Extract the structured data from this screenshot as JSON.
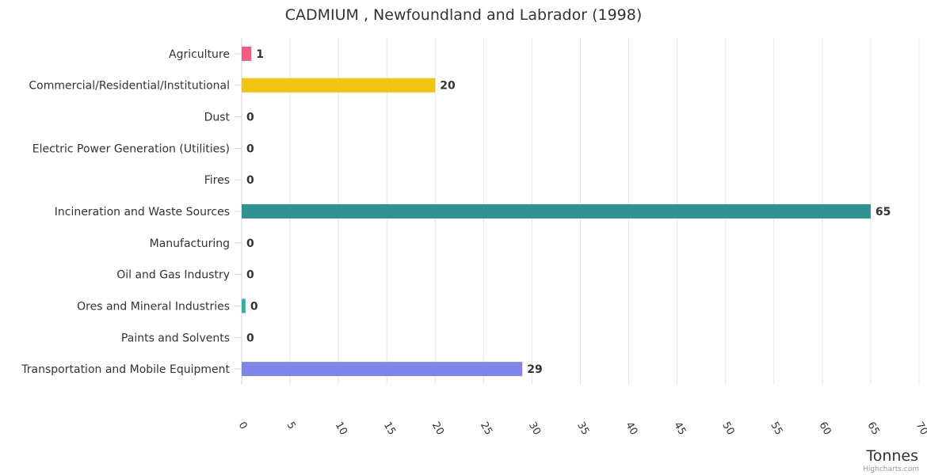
{
  "chart_data": {
    "type": "bar",
    "orientation": "horizontal",
    "title": "CADMIUM , Newfoundland and Labrador (1998)",
    "xlabel": "Tonnes",
    "categories": [
      "Agriculture",
      "Commercial/Residential/Institutional",
      "Dust",
      "Electric Power Generation (Utilities)",
      "Fires",
      "Incineration and Waste Sources",
      "Manufacturing",
      "Oil and Gas Industry",
      "Ores and Mineral Industries",
      "Paints and Solvents",
      "Transportation and Mobile Equipment"
    ],
    "values": [
      1,
      20,
      0,
      0,
      0,
      65,
      0,
      0,
      0.4,
      0,
      29
    ],
    "data_labels": [
      "1",
      "20",
      "0",
      "0",
      "0",
      "65",
      "0",
      "0",
      "0",
      "0",
      "29"
    ],
    "colors": [
      "#f15c80",
      "#f1c40f",
      "#2b908f",
      "#f45b5b",
      "#91e8e1",
      "#2f9490",
      "#7cb5ec",
      "#434348",
      "#26b59c",
      "#f7a35c",
      "#8085e9"
    ],
    "xlim": [
      0,
      70
    ],
    "xticks": [
      0,
      5,
      10,
      15,
      20,
      25,
      30,
      35,
      40,
      45,
      50,
      55,
      60,
      65,
      70
    ],
    "grid": true,
    "legend": "none"
  },
  "credits": "Highcharts.com"
}
